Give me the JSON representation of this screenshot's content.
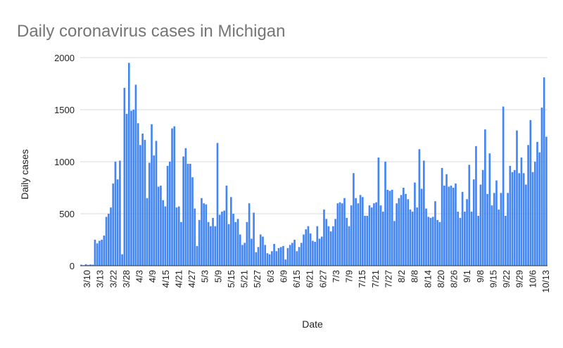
{
  "chart_data": {
    "type": "bar",
    "title": "Daily coronavirus cases in Michigan",
    "xlabel": "Date",
    "ylabel": "Daily cases",
    "ylim": [
      0,
      2000
    ],
    "yticks": [
      0,
      500,
      1000,
      1500,
      2000
    ],
    "grid": true,
    "legend": "none",
    "color": "#4285f4",
    "x_tick_labels": [
      "3/10",
      "3/13",
      "3/22",
      "3/28",
      "4/3",
      "4/9",
      "4/15",
      "4/21",
      "4/27",
      "5/3",
      "5/9",
      "5/15",
      "5/21",
      "5/27",
      "6/3",
      "6/9",
      "6/15",
      "6/21",
      "6/27",
      "7/3",
      "7/9",
      "7/15",
      "7/21",
      "7/27",
      "8/2",
      "8/8",
      "8/14",
      "8/20",
      "8/26",
      "9/1",
      "9/8",
      "9/15",
      "9/22",
      "9/29",
      "10/6",
      "10/13"
    ],
    "values": [
      10,
      5,
      15,
      8,
      12,
      10,
      250,
      215,
      240,
      250,
      290,
      470,
      500,
      560,
      790,
      1000,
      830,
      1010,
      110,
      1710,
      1460,
      1950,
      1490,
      1500,
      1740,
      1370,
      1160,
      1270,
      1210,
      650,
      990,
      1360,
      1060,
      1200,
      760,
      770,
      630,
      570,
      960,
      1000,
      1320,
      1340,
      560,
      570,
      420,
      1050,
      1130,
      980,
      980,
      850,
      550,
      190,
      440,
      650,
      600,
      590,
      420,
      380,
      460,
      380,
      1180,
      490,
      520,
      530,
      770,
      400,
      660,
      500,
      420,
      450,
      300,
      200,
      220,
      420,
      600,
      260,
      510,
      130,
      180,
      300,
      280,
      200,
      120,
      110,
      140,
      210,
      140,
      170,
      180,
      190,
      60,
      170,
      200,
      220,
      250,
      140,
      180,
      220,
      300,
      350,
      380,
      310,
      240,
      230,
      380,
      260,
      280,
      540,
      450,
      380,
      330,
      380,
      450,
      600,
      610,
      600,
      650,
      460,
      380,
      580,
      890,
      650,
      600,
      680,
      660,
      480,
      480,
      580,
      560,
      600,
      610,
      1040,
      580,
      520,
      1000,
      730,
      720,
      730,
      430,
      600,
      650,
      680,
      750,
      690,
      640,
      540,
      520,
      800,
      560,
      1120,
      740,
      1010,
      550,
      470,
      460,
      470,
      620,
      440,
      420,
      940,
      770,
      880,
      760,
      770,
      750,
      790,
      520,
      460,
      710,
      520,
      640,
      970,
      520,
      830,
      1150,
      480,
      780,
      920,
      1310,
      690,
      1080,
      580,
      700,
      820,
      540,
      700,
      1530,
      480,
      700,
      960,
      900,
      920,
      1300,
      890,
      1040,
      890,
      780,
      1160,
      1400,
      900,
      1000,
      1190,
      1090,
      1520,
      1810,
      1240
    ]
  }
}
